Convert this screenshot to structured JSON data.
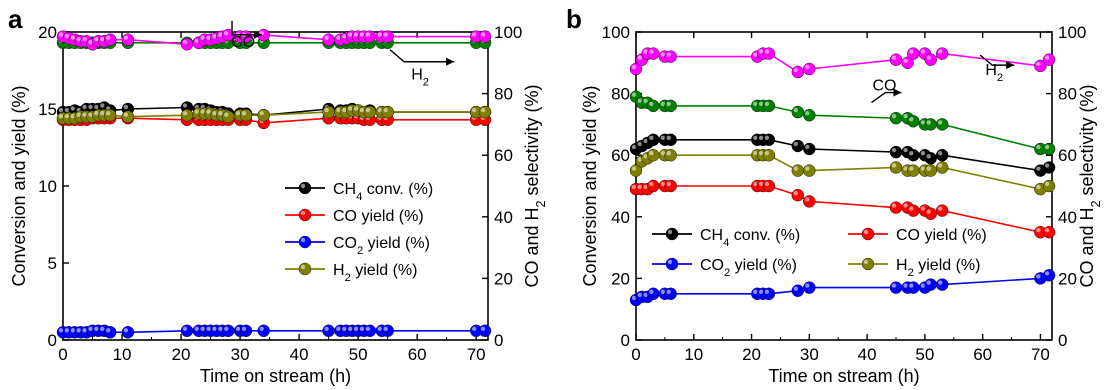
{
  "chart_data": [
    {
      "type": "line",
      "panel": "a",
      "xlabel": "Time on stream (h)",
      "ylabel": "Conversion and yield (%)",
      "y2label": "CO and H₂ selectivity (%)",
      "xlim": [
        0,
        72
      ],
      "ylim": [
        0,
        20
      ],
      "y2lim": [
        0,
        100
      ],
      "xticks": [
        0,
        10,
        20,
        30,
        40,
        50,
        60,
        70
      ],
      "yticks": [
        0,
        5,
        10,
        15,
        20
      ],
      "y2ticks": [
        0,
        20,
        40,
        60,
        80,
        100
      ],
      "legend_position": "center-right",
      "series": [
        {
          "name": "CH₄ conv. (%)",
          "axis": "left",
          "color": "#000000",
          "x": [
            0,
            1,
            2,
            3,
            4,
            5,
            6,
            7,
            8,
            11,
            21,
            23,
            24,
            25,
            26,
            27,
            28,
            30,
            31,
            34,
            45,
            47,
            48,
            49,
            50,
            51,
            52,
            54,
            55,
            70,
            71.5
          ],
          "y": [
            14.8,
            14.8,
            14.9,
            14.8,
            15.0,
            15.0,
            15.0,
            15.1,
            14.9,
            15.0,
            15.1,
            15.0,
            15.0,
            14.9,
            14.8,
            14.8,
            14.7,
            14.7,
            14.7,
            14.6,
            15.0,
            14.9,
            14.9,
            15.0,
            14.9,
            14.8,
            14.9,
            14.8,
            14.8,
            14.8,
            14.8
          ]
        },
        {
          "name": "CO yield (%)",
          "axis": "left",
          "color": "#ff0000",
          "x": [
            0,
            1,
            2,
            3,
            4,
            5,
            6,
            7,
            8,
            11,
            21,
            23,
            24,
            25,
            26,
            27,
            28,
            30,
            31,
            34,
            45,
            47,
            48,
            49,
            50,
            51,
            52,
            54,
            55,
            70,
            71.5
          ],
          "y": [
            14.3,
            14.3,
            14.3,
            14.3,
            14.3,
            14.4,
            14.4,
            14.4,
            14.4,
            14.4,
            14.3,
            14.3,
            14.3,
            14.3,
            14.3,
            14.3,
            14.3,
            14.3,
            14.3,
            14.1,
            14.4,
            14.4,
            14.4,
            14.4,
            14.4,
            14.3,
            14.3,
            14.3,
            14.3,
            14.3,
            14.3
          ]
        },
        {
          "name": "CO₂ yield (%)",
          "axis": "left",
          "color": "#0000ff",
          "x": [
            0,
            1,
            2,
            3,
            4,
            5,
            6,
            7,
            8,
            11,
            21,
            23,
            24,
            25,
            26,
            27,
            28,
            30,
            31,
            34,
            45,
            47,
            48,
            49,
            50,
            51,
            52,
            54,
            55,
            70,
            71.5
          ],
          "y": [
            0.5,
            0.5,
            0.5,
            0.5,
            0.5,
            0.6,
            0.6,
            0.6,
            0.5,
            0.5,
            0.6,
            0.6,
            0.6,
            0.6,
            0.6,
            0.6,
            0.6,
            0.6,
            0.6,
            0.6,
            0.6,
            0.6,
            0.6,
            0.6,
            0.6,
            0.6,
            0.6,
            0.6,
            0.6,
            0.6,
            0.6
          ]
        },
        {
          "name": "H₂ yield (%)",
          "axis": "left",
          "color": "#808000",
          "x": [
            0,
            1,
            2,
            3,
            4,
            5,
            6,
            7,
            8,
            11,
            21,
            23,
            24,
            25,
            26,
            27,
            28,
            30,
            31,
            34,
            45,
            47,
            48,
            49,
            50,
            51,
            52,
            54,
            55,
            70,
            71.5
          ],
          "y": [
            14.4,
            14.4,
            14.4,
            14.5,
            14.5,
            14.5,
            14.6,
            14.6,
            14.6,
            14.5,
            14.6,
            14.7,
            14.7,
            14.7,
            14.6,
            14.6,
            14.5,
            14.6,
            14.6,
            14.6,
            14.8,
            14.8,
            14.8,
            14.9,
            14.9,
            14.8,
            14.8,
            14.8,
            14.8,
            14.8,
            14.8
          ]
        },
        {
          "name": "CO selectivity",
          "axis": "right",
          "color": "#008000",
          "x": [
            0,
            1,
            2,
            3,
            4,
            5,
            6,
            7,
            8,
            11,
            21,
            23,
            24,
            25,
            26,
            27,
            28,
            30,
            31,
            34,
            45,
            47,
            48,
            49,
            50,
            51,
            52,
            54,
            55,
            70,
            71.5
          ],
          "y": [
            96.5,
            96.5,
            96.5,
            96.5,
            96.5,
            96.5,
            96.5,
            96.5,
            96.5,
            96.5,
            96.5,
            96.5,
            96.5,
            96.5,
            96.5,
            96.5,
            96.5,
            96.5,
            96.5,
            96.5,
            96.5,
            96.5,
            96.5,
            96.5,
            96.5,
            96.5,
            96.5,
            96.5,
            96.5,
            96.5,
            96.5
          ]
        },
        {
          "name": "H₂ selectivity",
          "axis": "right",
          "color": "#ff00ff",
          "x": [
            0,
            1,
            2,
            3,
            4,
            5,
            6,
            7,
            8,
            11,
            21,
            23,
            24,
            25,
            26,
            27,
            28,
            30,
            31,
            34,
            45,
            47,
            48,
            49,
            50,
            51,
            52,
            54,
            55,
            70,
            71.5
          ],
          "y": [
            98.5,
            98,
            97.5,
            97,
            97,
            96,
            97,
            97,
            97.5,
            97.5,
            96,
            96.5,
            97.5,
            97.5,
            98,
            98.5,
            99,
            98.5,
            98.5,
            99,
            97.5,
            97.5,
            98,
            98.5,
            98.5,
            98.5,
            98.5,
            98.5,
            98.5,
            98.5,
            98.5
          ]
        }
      ],
      "annotations": [
        {
          "text": "CO",
          "x": 30.5,
          "y": 95.2,
          "axis": "right"
        },
        {
          "text": "H₂",
          "x": 60.5,
          "y": 84.5,
          "axis": "right"
        }
      ]
    },
    {
      "type": "line",
      "panel": "b",
      "xlabel": "Time on stream (h)",
      "ylabel": "Conversion and yield (%)",
      "y2label": "CO and H₂ selectivity (%)",
      "xlim": [
        0,
        72
      ],
      "ylim": [
        0,
        100
      ],
      "y2lim": [
        0,
        100
      ],
      "xticks": [
        0,
        10,
        20,
        30,
        40,
        50,
        60,
        70
      ],
      "yticks": [
        0,
        20,
        40,
        60,
        80,
        100
      ],
      "y2ticks": [
        0,
        20,
        40,
        60,
        80,
        100
      ],
      "legend_position": "bottom",
      "series": [
        {
          "name": "CH₄ conv. (%)",
          "axis": "left",
          "color": "#000000",
          "x": [
            0,
            1,
            2,
            3,
            5,
            6,
            21,
            22,
            23,
            28,
            30,
            45,
            47,
            48,
            50,
            51,
            53,
            70,
            71.5
          ],
          "y": [
            62,
            63,
            64,
            65,
            65,
            65,
            65,
            65,
            65,
            63,
            62,
            61,
            61,
            60,
            60,
            59,
            60,
            55,
            56
          ]
        },
        {
          "name": "CO yield (%)",
          "axis": "left",
          "color": "#ff0000",
          "x": [
            0,
            1,
            2,
            3,
            5,
            6,
            21,
            22,
            23,
            28,
            30,
            45,
            47,
            48,
            50,
            51,
            53,
            70,
            71.5
          ],
          "y": [
            49,
            49,
            49,
            50,
            50,
            50,
            50,
            50,
            50,
            47,
            45,
            43,
            43,
            42,
            42,
            41,
            42,
            35,
            35
          ]
        },
        {
          "name": "CO₂ yield (%)",
          "axis": "left",
          "color": "#0000ff",
          "x": [
            0,
            1,
            2,
            3,
            5,
            6,
            21,
            22,
            23,
            28,
            30,
            45,
            47,
            48,
            50,
            51,
            53,
            70,
            71.5
          ],
          "y": [
            13,
            14,
            14,
            15,
            15,
            15,
            15,
            15,
            15,
            16,
            17,
            17,
            17,
            17,
            17,
            18,
            18,
            20,
            21
          ]
        },
        {
          "name": "H₂ yield (%)",
          "axis": "left",
          "color": "#808000",
          "x": [
            0,
            1,
            2,
            3,
            5,
            6,
            21,
            22,
            23,
            28,
            30,
            45,
            47,
            48,
            50,
            51,
            53,
            70,
            71.5
          ],
          "y": [
            55,
            58,
            59,
            60,
            60,
            60,
            60,
            60,
            60,
            55,
            55,
            56,
            55,
            55,
            55,
            55,
            56,
            49,
            50
          ]
        },
        {
          "name": "CO selectivity",
          "axis": "right",
          "color": "#008000",
          "x": [
            0,
            1,
            2,
            3,
            5,
            6,
            21,
            22,
            23,
            28,
            30,
            45,
            47,
            48,
            50,
            51,
            53,
            70,
            71.5
          ],
          "y": [
            79,
            77,
            77,
            76,
            76,
            76,
            76,
            76,
            76,
            74,
            73,
            72,
            72,
            71,
            70,
            70,
            70,
            62,
            62
          ]
        },
        {
          "name": "H₂ selectivity",
          "axis": "right",
          "color": "#ff00ff",
          "x": [
            0,
            1,
            2,
            3,
            5,
            6,
            21,
            22,
            23,
            28,
            30,
            45,
            47,
            48,
            50,
            51,
            53,
            70,
            71.5
          ],
          "y": [
            88,
            91,
            93,
            93,
            92,
            92,
            92,
            93,
            93,
            87,
            88,
            91,
            90,
            93,
            93,
            91,
            93,
            89,
            91
          ]
        }
      ],
      "annotations": [
        {
          "text": "CO",
          "x": 43,
          "y": 81,
          "axis": "right"
        },
        {
          "text": "H₂",
          "x": 62,
          "y": 86,
          "axis": "right"
        }
      ]
    }
  ]
}
